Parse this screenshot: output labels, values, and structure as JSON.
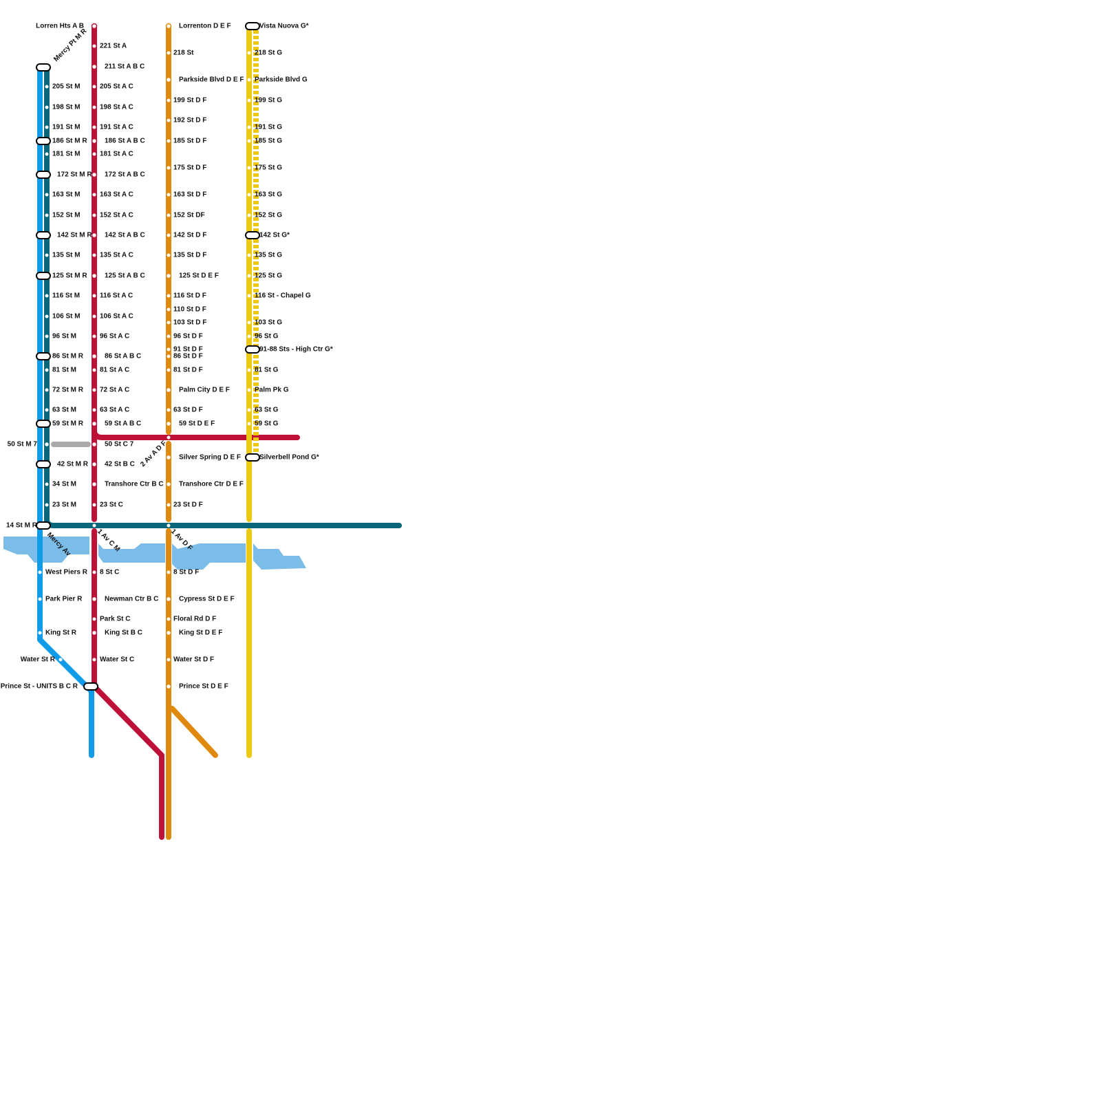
{
  "stations": {
    "blue": [
      "205 St M",
      "198 St M",
      "191 St M",
      "186 St M R",
      "181 St M",
      "172 St M R",
      "163 St M",
      "152 St M",
      "142 St M R",
      "135 St M",
      "125 St M R",
      "116 St M",
      "106 St M",
      "96 St M",
      "86 St M R",
      "81 St M",
      "72 St M R",
      "63 St M",
      "59 St M R",
      "50 St M 7",
      "42 St M R",
      "34 St M",
      "23 St M",
      "14 St M R",
      "West Piers R",
      "Park Pier R",
      "King St R",
      "Water St R",
      "Prince St - UNITS B C R"
    ],
    "red": [
      "Lorren Hts A B",
      "221 St A",
      "211 St A B C",
      "205 St A C",
      "198 St A C",
      "191 St A C",
      "186 St A B C",
      "181 St A C",
      "172 St A B C",
      "163 St A C",
      "152 St A C",
      "142 St A B C",
      "135 St A C",
      "125 St A B C",
      "116 St A C",
      "106 St A C",
      "96 St A C",
      "86 St A B C",
      "81 St A C",
      "72 St A C",
      "63 St A C",
      "59 St A B C",
      "50 St C 7",
      "42 St B C",
      "Transhore Ctr B C",
      "23 St C",
      "8 St C",
      "Newman Ctr B C",
      "Park St C",
      "King St B C",
      "Water St C"
    ],
    "orange": [
      "Lorrenton D E F",
      "218 St",
      "Parkside Blvd D E F",
      "199 St D F",
      "192 St D F",
      "185 St D F",
      "175 St D F",
      "163 St D F",
      "152 St DF",
      "142 St D F",
      "135 St D F",
      "125 St D E F",
      "116 St D F",
      "110 St D F",
      "103 St D F",
      "96 St D F",
      "91 St D F",
      "86 St D F",
      "81 St D F",
      "Palm City D E F",
      "63 St D F",
      "59 St D E F",
      "Silver Spring D E F",
      "Transhore Ctr D E F",
      "23 St D F",
      "8 St D F",
      "Cypress St D E F",
      "Floral Rd D F",
      "King St D E F",
      "Water St D F",
      "Prince St D E F"
    ],
    "yellow": [
      "Vista Nuova G*",
      "218 St G",
      "Parkside Blvd G",
      "199 St G",
      "191 St G",
      "185 St G",
      "175 St G",
      "163 St G",
      "152 St G",
      "142 St G*",
      "135 St G",
      "125 St G",
      "116 St - Chapel G",
      "103 St G",
      "96 St G",
      "91-88 Sts - High Ctr G*",
      "81 St G",
      "Palm Pk G",
      "63 St G",
      "59 St G",
      "Silverbell Pond G*"
    ]
  },
  "rotated_labels": [
    "Mercy Pt M R",
    "2 Av A D F",
    "Mercy Av",
    "1 Av C M",
    "1 Av D F"
  ]
}
